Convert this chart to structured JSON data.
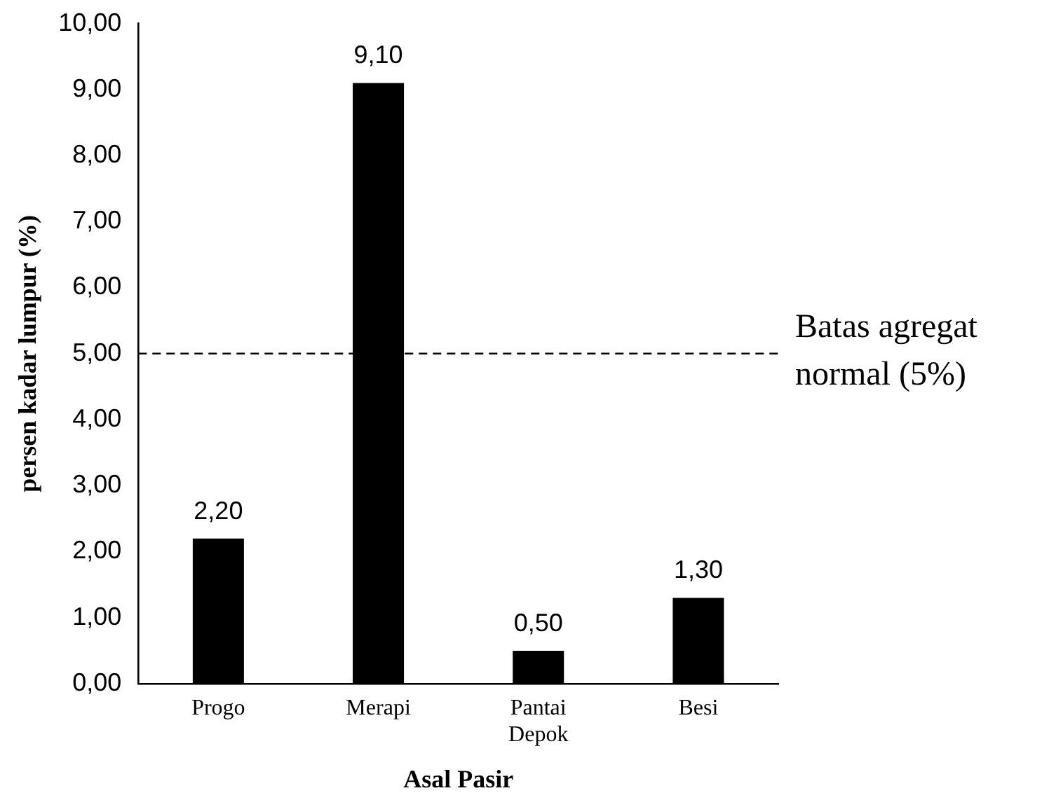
{
  "chart_data": {
    "type": "bar",
    "xlabel": "Asal Pasir",
    "ylabel": "persen kadar lumpur (%)",
    "categories": [
      "Progo",
      "Merapi",
      "Pantai Depok",
      "Besi"
    ],
    "values": [
      2.2,
      9.1,
      0.5,
      1.3
    ],
    "value_labels": [
      "2,20",
      "9,10",
      "0,50",
      "1,30"
    ],
    "color": "#000000",
    "ylim": [
      0,
      10
    ],
    "yticks": [
      {
        "value": 0,
        "label": "0,00"
      },
      {
        "value": 1,
        "label": "1,00"
      },
      {
        "value": 2,
        "label": "2,00"
      },
      {
        "value": 3,
        "label": "3,00"
      },
      {
        "value": 4,
        "label": "4,00"
      },
      {
        "value": 5,
        "label": "5,00"
      },
      {
        "value": 6,
        "label": "6,00"
      },
      {
        "value": 7,
        "label": "7,00"
      },
      {
        "value": 8,
        "label": "8,00"
      },
      {
        "value": 9,
        "label": "9,00"
      },
      {
        "value": 10,
        "label": "10,00"
      }
    ],
    "grid": false,
    "legend": false,
    "ref_lines": [
      {
        "axis": "y",
        "value": 5,
        "label": "Batas agregat normal (5%)",
        "line_style": "dashed",
        "color": "#000000"
      }
    ]
  }
}
